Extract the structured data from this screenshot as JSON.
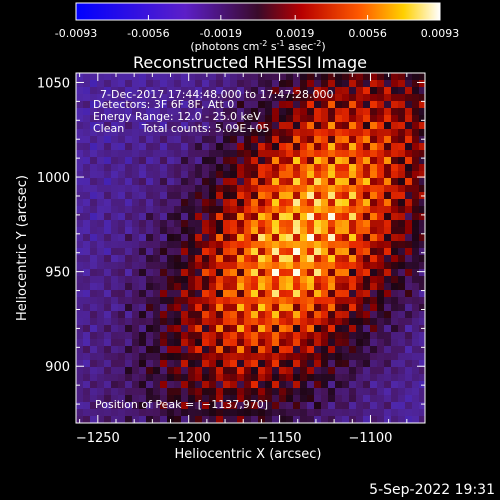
{
  "colorbar": {
    "ticks": [
      "-0.0093",
      "-0.0056",
      "-0.0019",
      "0.0019",
      "0.0056",
      "0.0093"
    ],
    "min": -0.0093,
    "max": 0.0093,
    "unit_prefix": "(photons cm",
    "unit_sup1": "-2",
    "unit_s": " s",
    "unit_sup2": "-1",
    "unit_asec": " asec",
    "unit_sup3": "-2",
    "unit_suffix": ")"
  },
  "chart_data": {
    "type": "heatmap",
    "title": "Reconstructed RHESSI Image",
    "xlabel": "Heliocentric X (arcsec)",
    "ylabel": "Heliocentric Y (arcsec)",
    "xlim": [
      -1262,
      -1070
    ],
    "ylim": [
      870,
      1055
    ],
    "x_ticks": [
      -1250,
      -1200,
      -1150,
      -1100
    ],
    "y_ticks": [
      900,
      950,
      1000,
      1050
    ],
    "x_tick_labels": [
      "−1250",
      "−1200",
      "−1150",
      "−1100"
    ],
    "y_tick_labels": [
      "900",
      "950",
      "1000",
      "1050"
    ],
    "peak": [
      -1137,
      970
    ],
    "colormap": "rhessi-blue-purple-red-yellow-white",
    "grid": false
  },
  "annotations": {
    "time_range": "7-Dec-2017 17:44:48.000 to 17:47:28.000",
    "detectors": "Detectors: 3F 6F 8F, Att 0",
    "energy_range": "Energy Range: 12.0 - 25.0 keV",
    "clean": "Clean     Total counts: 5.09E+05",
    "peak_position": "Position of Peak = [−1137,970]"
  },
  "footer": {
    "timestamp": "5-Sep-2022 19:31"
  }
}
